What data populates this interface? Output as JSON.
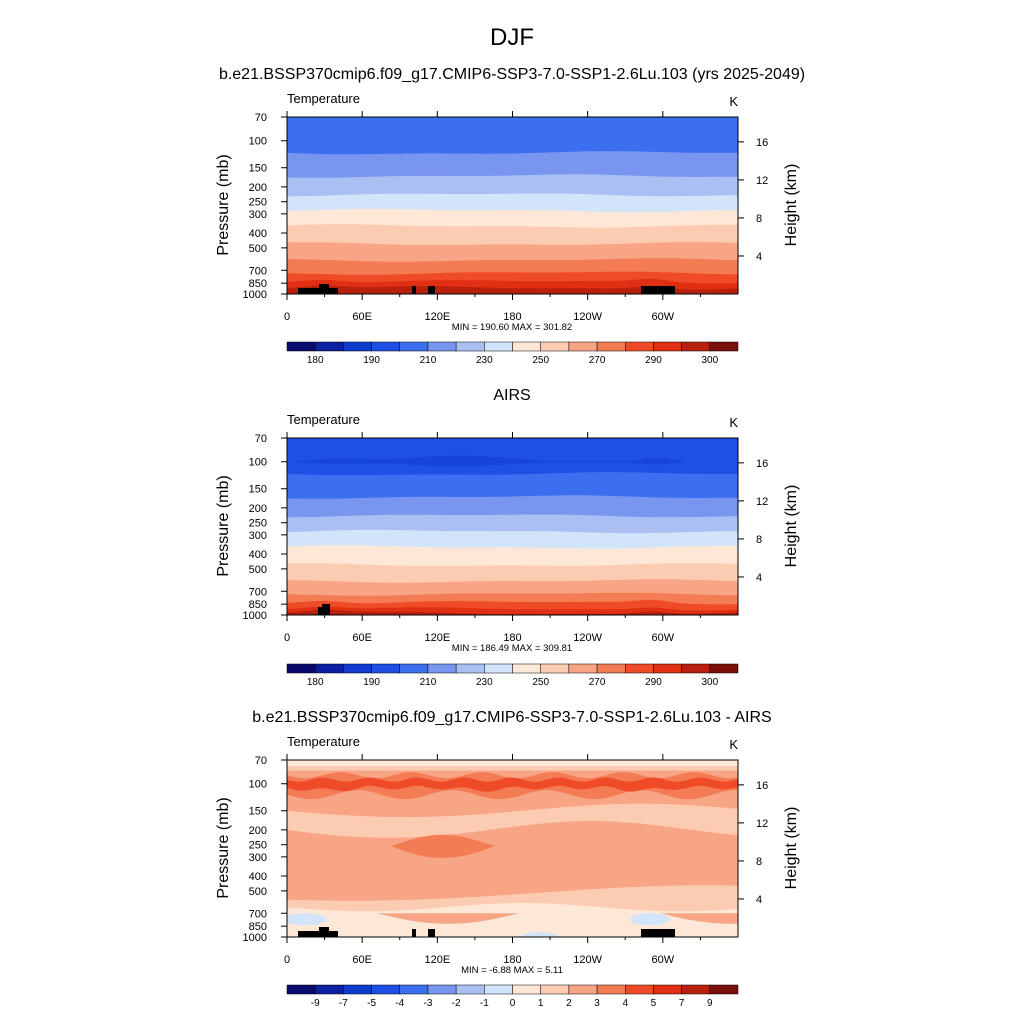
{
  "figure": {
    "title": "DJF"
  },
  "colors": {
    "scale": [
      "#0a0a6e",
      "#0a20a0",
      "#0f3ccf",
      "#1e50e6",
      "#3c6ef0",
      "#7896f0",
      "#aac0f2",
      "#d2e4fa",
      "#fde8d8",
      "#fcccb2",
      "#f8a585",
      "#f47c55",
      "#f04b28",
      "#e02f12",
      "#b8200e",
      "#781008"
    ],
    "terrain": "#000000",
    "frame": "#000000"
  },
  "chart_data": [
    {
      "type": "heatmap",
      "subtitle": "b.e21.BSSP370cmip6.f09_g17.CMIP6-SSP3-7.0-SSP1-2.6Lu.103 (yrs 2025-2049)",
      "variable": "Temperature",
      "units": "K",
      "ylabel": "Pressure (mb)",
      "ylabel_right": "Height (km)",
      "x_ticks": [
        "0",
        "60E",
        "120E",
        "180",
        "120W",
        "60W"
      ],
      "y_ticks": [
        "70",
        "100",
        "150",
        "200",
        "250",
        "300",
        "400",
        "500",
        "700",
        "850",
        "1000"
      ],
      "height_ticks": [
        "16",
        "12",
        "8",
        "4"
      ],
      "ylim_mb": [
        1000,
        70
      ],
      "stats": "MIN = 190.60  MAX = 301.82",
      "colorbar_labels": [
        "180",
        "190",
        "210",
        "230",
        "250",
        "270",
        "290",
        "300"
      ],
      "levels_top_to_bottom": [
        "190-200",
        "200-210",
        "210-220",
        "220-230",
        "230-240",
        "240-250",
        "250-260",
        "260-270",
        "270-280",
        "280-290",
        "290-300"
      ]
    },
    {
      "type": "heatmap",
      "subtitle": "AIRS",
      "variable": "Temperature",
      "units": "K",
      "ylabel": "Pressure (mb)",
      "ylabel_right": "Height (km)",
      "x_ticks": [
        "0",
        "60E",
        "120E",
        "180",
        "120W",
        "60W"
      ],
      "y_ticks": [
        "70",
        "100",
        "150",
        "200",
        "250",
        "300",
        "400",
        "500",
        "700",
        "850",
        "1000"
      ],
      "height_ticks": [
        "16",
        "12",
        "8",
        "4"
      ],
      "ylim_mb": [
        1000,
        70
      ],
      "stats": "MIN = 186.49  MAX = 309.81",
      "colorbar_labels": [
        "180",
        "190",
        "210",
        "230",
        "250",
        "270",
        "290",
        "300"
      ],
      "levels_top_to_bottom": [
        "190-200",
        "200-210",
        "210-220",
        "220-230",
        "230-240",
        "240-250",
        "250-260",
        "260-270",
        "270-280",
        "280-290",
        "290-300",
        "300-310"
      ]
    },
    {
      "type": "heatmap",
      "subtitle": "b.e21.BSSP370cmip6.f09_g17.CMIP6-SSP3-7.0-SSP1-2.6Lu.103 - AIRS",
      "variable": "Temperature",
      "units": "K",
      "ylabel": "Pressure (mb)",
      "ylabel_right": "Height (km)",
      "x_ticks": [
        "0",
        "60E",
        "120E",
        "180",
        "120W",
        "60W"
      ],
      "y_ticks": [
        "70",
        "100",
        "150",
        "200",
        "250",
        "300",
        "400",
        "500",
        "700",
        "850",
        "1000"
      ],
      "height_ticks": [
        "16",
        "12",
        "8",
        "4"
      ],
      "ylim_mb": [
        1000,
        70
      ],
      "stats": "MIN =  -6.88  MAX =   5.11",
      "colorbar_labels": [
        "-9",
        "-7",
        "-5",
        "-4",
        "-3",
        "-2",
        "-1",
        "0",
        "1",
        "2",
        "3",
        "4",
        "5",
        "7",
        "9"
      ],
      "difference_range": [
        -6.88,
        5.11
      ]
    }
  ]
}
